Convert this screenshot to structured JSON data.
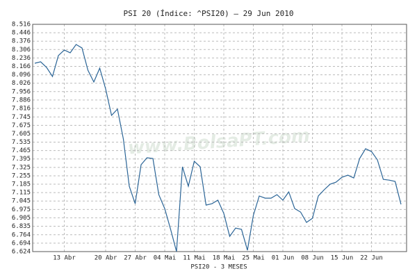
{
  "chart_data": {
    "type": "line",
    "title": "PSI 20 (Índice: ^PSI20) – 29 Jun 2010",
    "x_label": "PSI20 - 3 MESES",
    "watermark": "www.BolsaPT.com",
    "categories": [
      null,
      null,
      null,
      null,
      null,
      "13 Abr",
      null,
      null,
      null,
      null,
      null,
      null,
      "20 Abr",
      null,
      null,
      null,
      null,
      "27 Abr",
      null,
      null,
      null,
      null,
      "04 Mai",
      null,
      null,
      null,
      null,
      "11 Mai",
      null,
      null,
      null,
      null,
      "18 Mai",
      null,
      null,
      null,
      null,
      "25 Mai",
      null,
      null,
      null,
      null,
      "01 Jun",
      null,
      null,
      null,
      null,
      "08 Jun",
      null,
      null,
      null,
      null,
      "15 Jun",
      null,
      null,
      null,
      null,
      "22 Jun",
      null,
      null,
      null,
      null,
      null
    ],
    "series": [
      {
        "name": "PSI20",
        "color": "#2a6496",
        "values": [
          8.192,
          8.204,
          8.157,
          8.082,
          8.256,
          8.302,
          8.279,
          8.348,
          8.319,
          8.134,
          8.036,
          8.151,
          7.978,
          7.758,
          7.81,
          7.561,
          7.168,
          7.023,
          7.347,
          7.405,
          7.399,
          7.098,
          6.982,
          6.809,
          6.624,
          7.33,
          7.168,
          7.376,
          7.33,
          7.011,
          7.023,
          7.052,
          6.942,
          6.751,
          6.82,
          6.809,
          6.635,
          6.925,
          7.087,
          7.069,
          7.069,
          7.098,
          7.052,
          7.121,
          6.982,
          6.953,
          6.867,
          6.901,
          7.087,
          7.139,
          7.185,
          7.202,
          7.243,
          7.26,
          7.237,
          7.399,
          7.48,
          7.457,
          7.388,
          7.225,
          7.219,
          7.208,
          7.017
        ]
      }
    ],
    "ylim": [
      6.624,
      8.516
    ],
    "yticks": [
      8.516,
      8.446,
      8.376,
      8.306,
      8.236,
      8.166,
      8.096,
      8.026,
      7.956,
      7.886,
      7.816,
      7.745,
      7.675,
      7.605,
      7.535,
      7.465,
      7.395,
      7.325,
      7.255,
      7.185,
      7.115,
      7.045,
      6.975,
      6.905,
      6.835,
      6.764,
      6.694,
      6.624
    ],
    "grid": true
  }
}
